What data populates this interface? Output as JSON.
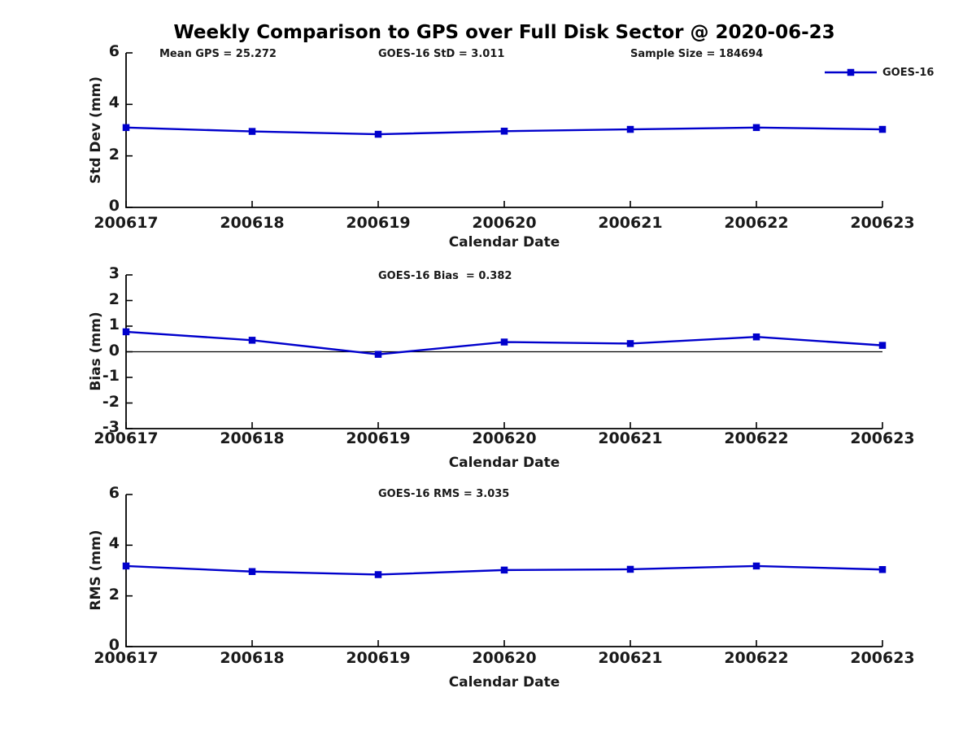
{
  "title": "Weekly Comparison to GPS over Full Disk Sector @ 2020-06-23",
  "legend": {
    "label": "GOES-16",
    "color": "#0000CC",
    "position": "top-right"
  },
  "colors": {
    "line": "#0000CC",
    "axis": "#000000",
    "text": "#1a1a1a",
    "background": "#ffffff"
  },
  "chart_data": [
    {
      "type": "line",
      "ylabel": "Std Dev (mm)",
      "xlabel": "Calendar Date",
      "categories": [
        "200617",
        "200618",
        "200619",
        "200620",
        "200621",
        "200622",
        "200623"
      ],
      "series": [
        {
          "name": "GOES-16",
          "color": "#0000CC",
          "marker": "square",
          "values": [
            3.1,
            2.95,
            2.84,
            2.96,
            3.03,
            3.1,
            3.03
          ]
        }
      ],
      "ylim": [
        0,
        6
      ],
      "yticks": [
        0,
        2,
        4,
        6
      ],
      "grid": false,
      "zero_line": false,
      "annotations": [
        "Mean GPS = 25.272",
        "GOES-16 StD = 3.011",
        "Sample Size = 184694"
      ]
    },
    {
      "type": "line",
      "ylabel": "Bias (mm)",
      "xlabel": "Calendar Date",
      "categories": [
        "200617",
        "200618",
        "200619",
        "200620",
        "200621",
        "200622",
        "200623"
      ],
      "series": [
        {
          "name": "GOES-16",
          "color": "#0000CC",
          "marker": "square",
          "values": [
            0.78,
            0.45,
            -0.1,
            0.38,
            0.32,
            0.58,
            0.25
          ]
        }
      ],
      "ylim": [
        -3,
        3
      ],
      "yticks": [
        -3,
        -2,
        -1,
        0,
        1,
        2,
        3
      ],
      "grid": false,
      "zero_line": true,
      "annotations": [
        "GOES-16 Bias  = 0.382"
      ]
    },
    {
      "type": "line",
      "ylabel": "RMS (mm)",
      "xlabel": "Calendar Date",
      "categories": [
        "200617",
        "200618",
        "200619",
        "200620",
        "200621",
        "200622",
        "200623"
      ],
      "series": [
        {
          "name": "GOES-16",
          "color": "#0000CC",
          "marker": "square",
          "values": [
            3.18,
            2.96,
            2.84,
            3.02,
            3.05,
            3.18,
            3.04
          ]
        }
      ],
      "ylim": [
        0,
        6
      ],
      "yticks": [
        0,
        2,
        4,
        6
      ],
      "grid": false,
      "zero_line": false,
      "annotations": [
        "GOES-16 RMS = 3.035"
      ]
    }
  ]
}
